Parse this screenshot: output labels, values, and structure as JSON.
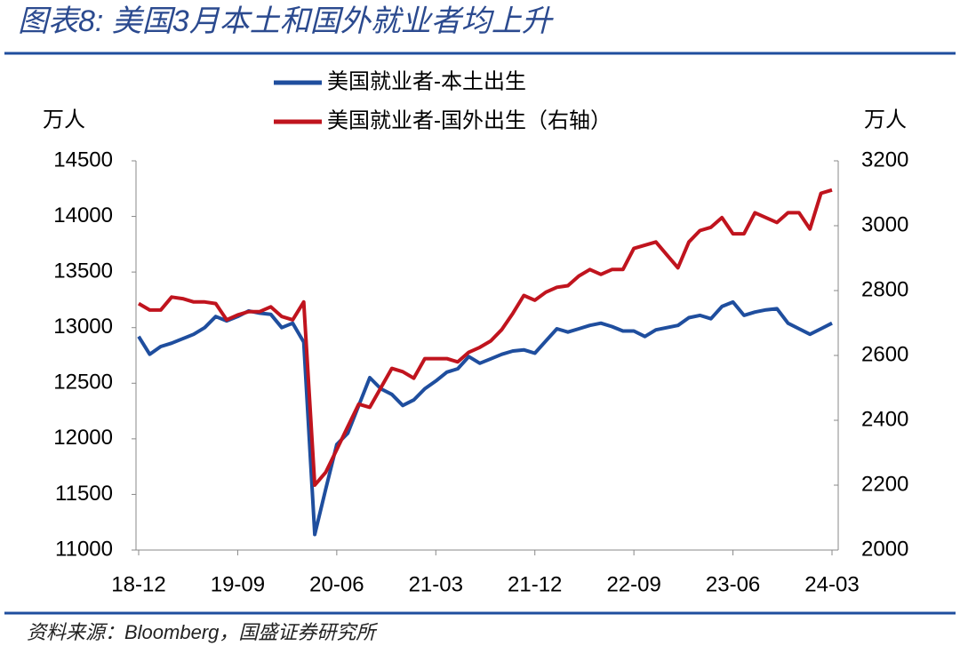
{
  "chart_data": {
    "type": "line",
    "title": "图表8: 美国3月本土和国外就业者均上升",
    "source": "资料来源：Bloomberg，国盛证券研究所",
    "y_label": "万人",
    "y2_label": "万人",
    "categories": [
      "18-12",
      null,
      null,
      null,
      null,
      null,
      null,
      null,
      null,
      "19-09",
      null,
      null,
      null,
      null,
      null,
      null,
      null,
      null,
      "20-06",
      null,
      null,
      null,
      null,
      null,
      null,
      null,
      null,
      "21-03",
      null,
      null,
      null,
      null,
      null,
      null,
      null,
      null,
      "21-12",
      null,
      null,
      null,
      null,
      null,
      null,
      null,
      null,
      "22-09",
      null,
      null,
      null,
      null,
      null,
      null,
      null,
      null,
      "23-06",
      null,
      null,
      null,
      null,
      null,
      null,
      null,
      null,
      "24-03"
    ],
    "series": [
      {
        "name": "美国就业者-本土出生",
        "color": "#1f4e9e",
        "values": [
          12920,
          12760,
          12830,
          12860,
          12900,
          12940,
          13000,
          13100,
          13060,
          13100,
          13150,
          13130,
          13120,
          13000,
          13040,
          12870,
          11140,
          11550,
          11950,
          12050,
          12300,
          12550,
          12450,
          12400,
          12300,
          12350,
          12450,
          12520,
          12600,
          12630,
          12740,
          12680,
          12720,
          12760,
          12790,
          12800,
          12770,
          12880,
          12990,
          12960,
          12990,
          13020,
          13040,
          13010,
          12970,
          12970,
          12920,
          12980,
          13000,
          13020,
          13090,
          13110,
          13080,
          13190,
          13230,
          13110,
          13140,
          13160,
          13170,
          13040,
          12990,
          12940,
          12990,
          13040
        ]
      },
      {
        "name": "美国就业者-国外出生（右轴）",
        "color": "#c0141e",
        "axis": "y2",
        "values": [
          2760,
          2740,
          2740,
          2780,
          2775,
          2765,
          2765,
          2760,
          2710,
          2725,
          2735,
          2735,
          2750,
          2720,
          2710,
          2765,
          2200,
          2240,
          2310,
          2380,
          2450,
          2440,
          2500,
          2560,
          2550,
          2530,
          2590,
          2590,
          2590,
          2580,
          2610,
          2625,
          2645,
          2680,
          2730,
          2785,
          2770,
          2795,
          2810,
          2815,
          2845,
          2865,
          2850,
          2865,
          2865,
          2930,
          2940,
          2950,
          2910,
          2870,
          2950,
          2985,
          2995,
          3025,
          2975,
          2975,
          3040,
          3025,
          3010,
          3040,
          3040,
          2990,
          3100,
          3110
        ]
      }
    ],
    "ylim": [
      11000,
      14500
    ],
    "yticks": [
      11000,
      11500,
      12000,
      12500,
      13000,
      13500,
      14000,
      14500
    ],
    "y2lim": [
      2000,
      3200
    ],
    "y2ticks": [
      2000,
      2200,
      2400,
      2600,
      2800,
      3000,
      3200
    ]
  }
}
